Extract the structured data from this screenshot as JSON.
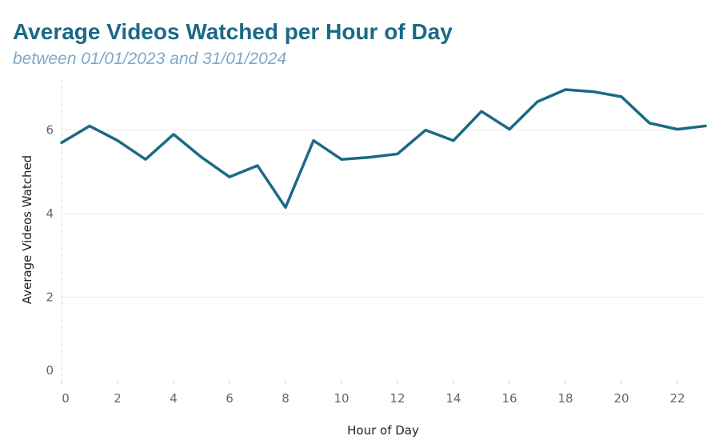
{
  "header": {
    "title": "Average Videos Watched per Hour of Day",
    "subtitle": "between 01/01/2023 and 31/01/2024"
  },
  "colors": {
    "title": "#1a6a86",
    "subtitle": "#7ea9c9",
    "line": "#1a6a86",
    "grid": "#eeeeee"
  },
  "chart_data": {
    "type": "line",
    "title": "Average Videos Watched per Hour of Day",
    "subtitle": "between 01/01/2023 and 31/01/2024",
    "xlabel": "Hour of Day",
    "ylabel": "Average Videos Watched",
    "xlim": [
      0,
      23
    ],
    "ylim": [
      0,
      7.2
    ],
    "x_ticks": [
      0,
      2,
      4,
      6,
      8,
      10,
      12,
      14,
      16,
      18,
      20,
      22
    ],
    "y_ticks": [
      0,
      2,
      4,
      6
    ],
    "grid": "horizontal",
    "series": [
      {
        "x": [
          0,
          1,
          2,
          3,
          4,
          5,
          6,
          7,
          8,
          9,
          10,
          11,
          12,
          13,
          14,
          15,
          16,
          17,
          18,
          19,
          20,
          21,
          22,
          23
        ],
        "values": [
          5.7,
          6.1,
          5.75,
          5.3,
          5.9,
          5.35,
          4.88,
          5.15,
          4.15,
          5.75,
          5.3,
          5.35,
          5.43,
          6.0,
          5.75,
          6.45,
          6.02,
          6.68,
          6.97,
          6.92,
          6.8,
          6.17,
          6.02,
          6.1
        ]
      }
    ]
  }
}
